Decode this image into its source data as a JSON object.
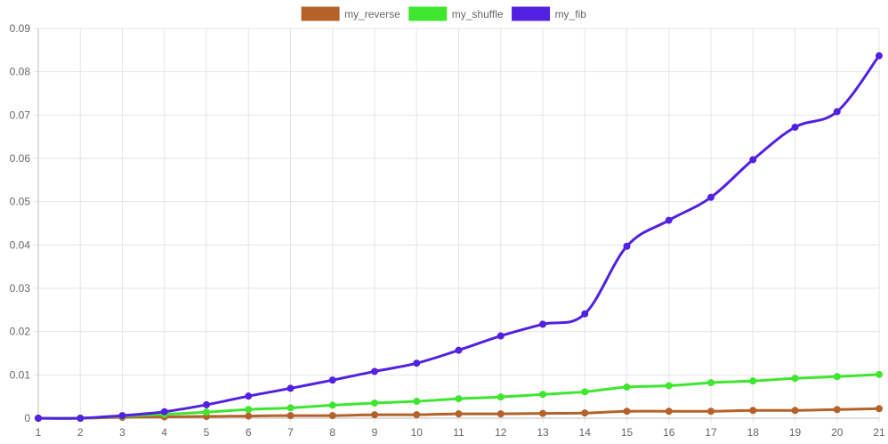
{
  "chart_data": {
    "type": "line",
    "title": "",
    "xlabel": "",
    "ylabel": "",
    "x": [
      1,
      2,
      3,
      4,
      5,
      6,
      7,
      8,
      9,
      10,
      11,
      12,
      13,
      14,
      15,
      16,
      17,
      18,
      19,
      20,
      21
    ],
    "x_tick_labels": [
      "1",
      "2",
      "3",
      "4",
      "5",
      "6",
      "7",
      "8",
      "9",
      "10",
      "11",
      "12",
      "13",
      "14",
      "15",
      "16",
      "17",
      "18",
      "19",
      "20",
      "21"
    ],
    "ylim": [
      0,
      0.09
    ],
    "y_ticks": [
      0,
      0.01,
      0.02,
      0.03,
      0.04,
      0.05,
      0.06,
      0.07,
      0.08,
      0.09
    ],
    "y_tick_labels": [
      "0",
      "0.01",
      "0.02",
      "0.03",
      "0.04",
      "0.05",
      "0.06",
      "0.07",
      "0.08",
      "0.09"
    ],
    "grid": true,
    "legend_position": "top-center",
    "series": [
      {
        "name": "my_reverse",
        "color": "#b5622a",
        "values": [
          0.0,
          0.0,
          0.0002,
          0.0003,
          0.0004,
          0.0005,
          0.0006,
          0.0006,
          0.0008,
          0.0008,
          0.001,
          0.001,
          0.0011,
          0.0012,
          0.0016,
          0.0016,
          0.0016,
          0.0018,
          0.0018,
          0.002,
          0.0022
        ]
      },
      {
        "name": "my_shuffle",
        "color": "#3ee62e",
        "values": [
          0.0,
          0.0,
          0.0005,
          0.0009,
          0.0014,
          0.002,
          0.0024,
          0.003,
          0.0035,
          0.0039,
          0.0045,
          0.0049,
          0.0055,
          0.0061,
          0.0072,
          0.0075,
          0.0082,
          0.0086,
          0.0092,
          0.0096,
          0.0101
        ]
      },
      {
        "name": "my_fib",
        "color": "#5220e0",
        "values": [
          0.0,
          0.0,
          0.0006,
          0.0015,
          0.0031,
          0.0051,
          0.0069,
          0.0088,
          0.0108,
          0.0127,
          0.0157,
          0.019,
          0.0217,
          0.0241,
          0.0397,
          0.0457,
          0.051,
          0.0597,
          0.0672,
          0.0708,
          0.0837
        ]
      }
    ]
  }
}
